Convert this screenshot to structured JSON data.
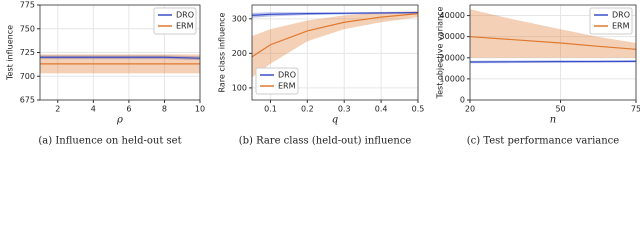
{
  "chart_data": [
    {
      "type": "line",
      "caption": "(a) Influence on held-out set",
      "xlabel": "ρ",
      "ylabel": "Test influence",
      "x": [
        1,
        2,
        4,
        6,
        8,
        10
      ],
      "xlim": [
        1,
        10
      ],
      "xticks": [
        2,
        4,
        6,
        8,
        10
      ],
      "ylim": [
        675,
        775
      ],
      "yticks": [
        675,
        700,
        725,
        750,
        775
      ],
      "legend": "upper right",
      "series": [
        {
          "name": "DRO",
          "color": "#3a4fc7",
          "values": [
            720,
            720,
            720,
            720,
            720,
            719
          ],
          "lower": [
            718,
            718,
            718,
            718,
            718,
            717
          ],
          "upper": [
            722,
            722,
            722,
            722,
            722,
            721
          ]
        },
        {
          "name": "ERM",
          "color": "#e0782f",
          "values": [
            713,
            713,
            713,
            713,
            713,
            713
          ],
          "lower": [
            703,
            703,
            703,
            703,
            703,
            703
          ],
          "upper": [
            723,
            723,
            723,
            723,
            723,
            723
          ]
        }
      ]
    },
    {
      "type": "line",
      "caption": "(b) Rare class (held-out) influence",
      "xlabel": "q",
      "ylabel": "Rare class influence",
      "x": [
        0.05,
        0.1,
        0.2,
        0.3,
        0.4,
        0.5
      ],
      "xlim": [
        0.05,
        0.5
      ],
      "xticks": [
        0.1,
        0.2,
        0.3,
        0.4,
        0.5
      ],
      "ylim": [
        65,
        340
      ],
      "yticks": [
        100,
        200,
        300
      ],
      "legend": "lower left",
      "series": [
        {
          "name": "DRO",
          "color": "#3a4fc7",
          "values": [
            310,
            313,
            315,
            316,
            317,
            318
          ],
          "lower": [
            303,
            307,
            311,
            313,
            314,
            315
          ],
          "upper": [
            317,
            319,
            319,
            319,
            320,
            321
          ]
        },
        {
          "name": "ERM",
          "color": "#e0782f",
          "values": [
            190,
            225,
            265,
            290,
            305,
            315
          ],
          "lower": [
            130,
            170,
            235,
            270,
            290,
            305
          ],
          "upper": [
            250,
            270,
            295,
            310,
            318,
            322
          ]
        }
      ]
    },
    {
      "type": "line",
      "caption": "(c) Test performance variance",
      "xlabel": "n",
      "ylabel": "Test objective variance",
      "x": [
        20,
        35,
        50,
        62,
        75
      ],
      "xlim": [
        20,
        75
      ],
      "xticks": [
        20,
        50,
        75
      ],
      "ylim": [
        0,
        45000
      ],
      "yticks": [
        0,
        10000,
        20000,
        30000,
        40000
      ],
      "legend": "upper right",
      "series": [
        {
          "name": "DRO",
          "color": "#3a4fc7",
          "values": [
            18000,
            18100,
            18200,
            18200,
            18300
          ],
          "lower": [
            17400,
            17500,
            17600,
            17700,
            17800
          ],
          "upper": [
            18600,
            18700,
            18800,
            18800,
            18900
          ]
        },
        {
          "name": "ERM",
          "color": "#e0782f",
          "values": [
            30000,
            28500,
            27000,
            25500,
            24000
          ],
          "lower": [
            20000,
            20000,
            20000,
            20000,
            20000
          ],
          "upper": [
            43000,
            38000,
            33500,
            30000,
            27000
          ]
        }
      ]
    }
  ]
}
